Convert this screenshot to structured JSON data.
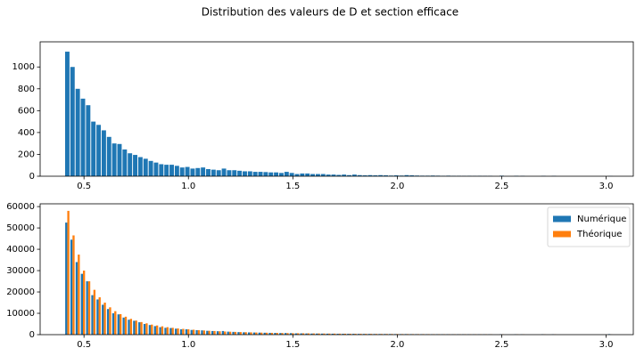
{
  "title": "Distribution des valeurs de D et section efficace",
  "chart_data": [
    {
      "type": "bar",
      "color": "#1f77b4",
      "bar_width": 0.021,
      "x": [
        0.42,
        0.445,
        0.47,
        0.495,
        0.52,
        0.545,
        0.57,
        0.595,
        0.62,
        0.645,
        0.67,
        0.695,
        0.72,
        0.745,
        0.77,
        0.795,
        0.82,
        0.845,
        0.87,
        0.895,
        0.92,
        0.945,
        0.97,
        0.995,
        1.02,
        1.045,
        1.07,
        1.095,
        1.12,
        1.145,
        1.17,
        1.195,
        1.22,
        1.245,
        1.27,
        1.295,
        1.32,
        1.345,
        1.37,
        1.395,
        1.42,
        1.445,
        1.47,
        1.495,
        1.52,
        1.545,
        1.57,
        1.595,
        1.62,
        1.645,
        1.67,
        1.695,
        1.72,
        1.745,
        1.77,
        1.795,
        1.82,
        1.845,
        1.87,
        1.895,
        1.92,
        1.945,
        1.97,
        1.995,
        2.02,
        2.045,
        2.07,
        2.095,
        2.12,
        2.145,
        2.17,
        2.195,
        2.22,
        2.245,
        2.27,
        2.295,
        2.32,
        2.345,
        2.37,
        2.395,
        2.42,
        2.445,
        2.5,
        2.57,
        2.6,
        2.7,
        2.75,
        3.02
      ],
      "values": [
        1140,
        1000,
        800,
        710,
        650,
        500,
        470,
        420,
        360,
        300,
        295,
        245,
        210,
        195,
        175,
        160,
        140,
        125,
        110,
        105,
        105,
        95,
        80,
        85,
        70,
        75,
        80,
        65,
        60,
        55,
        70,
        55,
        55,
        50,
        45,
        45,
        40,
        40,
        38,
        35,
        35,
        30,
        40,
        30,
        20,
        25,
        25,
        20,
        20,
        20,
        15,
        15,
        12,
        15,
        10,
        15,
        10,
        8,
        10,
        8,
        10,
        8,
        6,
        8,
        6,
        10,
        8,
        6,
        5,
        5,
        6,
        5,
        4,
        5,
        4,
        4,
        3,
        4,
        3,
        4,
        3,
        3,
        5,
        4,
        3,
        3,
        3,
        2
      ],
      "xlim": [
        0.29,
        3.13
      ],
      "ylim": [
        0,
        1230
      ],
      "xticks": [
        0.5,
        {
          "value": 1,
          "label": "1.0"
        },
        1.5,
        {
          "value": 2,
          "label": "2.0"
        },
        2.5,
        {
          "value": 3,
          "label": "3.0"
        }
      ],
      "yticks": [
        0,
        200,
        400,
        600,
        800,
        1000
      ]
    },
    {
      "type": "bar",
      "bar_width": 0.01,
      "legend": "upper right",
      "x": [
        0.42,
        0.445,
        0.47,
        0.495,
        0.52,
        0.545,
        0.57,
        0.595,
        0.62,
        0.645,
        0.67,
        0.695,
        0.72,
        0.745,
        0.77,
        0.795,
        0.82,
        0.845,
        0.87,
        0.895,
        0.92,
        0.945,
        0.97,
        0.995,
        1.02,
        1.045,
        1.07,
        1.095,
        1.12,
        1.145,
        1.17,
        1.195,
        1.22,
        1.245,
        1.27,
        1.295,
        1.32,
        1.345,
        1.37,
        1.395,
        1.42,
        1.445,
        1.47,
        1.495,
        1.52,
        1.545,
        1.57,
        1.595,
        1.62,
        1.645,
        1.67,
        1.695,
        1.72,
        1.745,
        1.77,
        1.795,
        1.82,
        1.845,
        1.87,
        1.895,
        1.92,
        1.945,
        1.97,
        1.995,
        2.02,
        2.045,
        2.07,
        2.095,
        2.12,
        2.145,
        2.17,
        2.195,
        2.22,
        2.245,
        2.27,
        2.295,
        2.32,
        2.345,
        2.37,
        2.395,
        2.42,
        2.445,
        2.5,
        2.57,
        2.6,
        2.7,
        2.75,
        3.02
      ],
      "series": [
        {
          "name": "Numérique",
          "color": "#1f77b4",
          "values": [
            52500,
            44500,
            34000,
            28500,
            25000,
            18500,
            16500,
            14000,
            12000,
            10000,
            9500,
            8000,
            7000,
            6500,
            5800,
            5000,
            4500,
            4000,
            3500,
            3200,
            3100,
            2800,
            2500,
            2500,
            2200,
            2100,
            2000,
            1800,
            1700,
            1600,
            1700,
            1400,
            1300,
            1200,
            1100,
            1050,
            1000,
            950,
            900,
            850,
            800,
            750,
            750,
            700,
            600,
            600,
            550,
            500,
            500,
            480,
            450,
            430,
            400,
            400,
            380,
            380,
            350,
            330,
            330,
            300,
            300,
            290,
            280,
            260,
            250,
            260,
            240,
            230,
            220,
            210,
            210,
            200,
            190,
            190,
            180,
            180,
            170,
            160,
            160,
            160,
            150,
            150,
            200,
            150,
            120,
            180,
            150,
            250
          ]
        },
        {
          "name": "Théorique",
          "color": "#ff7f0e",
          "values": [
            58000,
            46500,
            37500,
            30000,
            25000,
            21000,
            17500,
            15000,
            12800,
            11000,
            9600,
            8400,
            7400,
            6600,
            5900,
            5300,
            4700,
            4300,
            3900,
            3500,
            3200,
            2900,
            2700,
            2500,
            2300,
            2100,
            1950,
            1800,
            1700,
            1580,
            1470,
            1380,
            1290,
            1210,
            1140,
            1070,
            1010,
            950,
            900,
            850,
            800,
            760,
            720,
            690,
            650,
            620,
            590,
            560,
            540,
            510,
            490,
            470,
            450,
            430,
            410,
            390,
            380,
            360,
            350,
            330,
            320,
            310,
            300,
            285,
            275,
            265,
            255,
            245,
            240,
            230,
            220,
            215,
            205,
            200,
            195,
            185,
            180,
            175,
            170,
            165,
            160,
            155,
            145,
            135,
            130,
            115,
            110,
            80
          ]
        }
      ],
      "xlim": [
        0.29,
        3.13
      ],
      "ylim": [
        0,
        61300
      ],
      "xticks": [
        0.5,
        {
          "value": 1,
          "label": "1.0"
        },
        1.5,
        {
          "value": 2,
          "label": "2.0"
        },
        2.5,
        {
          "value": 3,
          "label": "3.0"
        }
      ],
      "yticks": [
        0,
        10000,
        20000,
        30000,
        40000,
        50000,
        60000
      ]
    }
  ]
}
